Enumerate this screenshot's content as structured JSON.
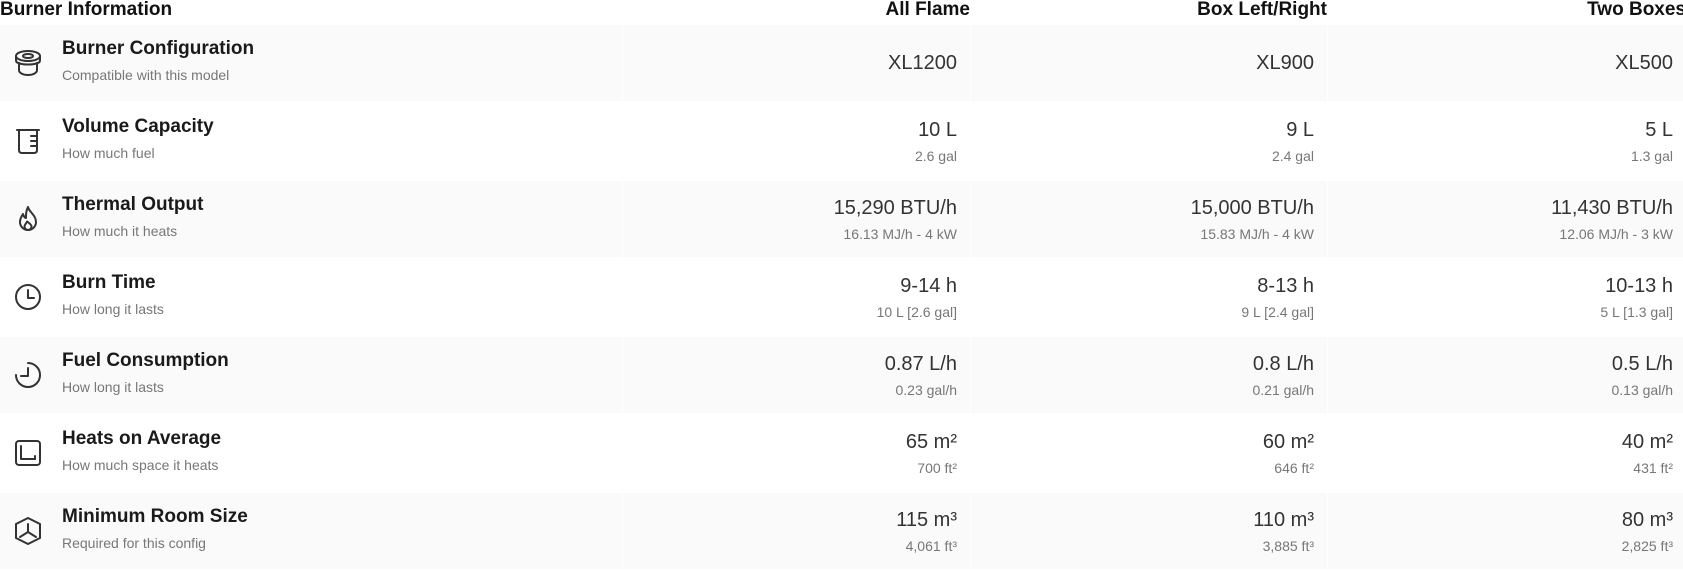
{
  "header": {
    "title": "Burner Information",
    "columns": [
      "All Flame",
      "Box Left/Right",
      "Two Boxes"
    ]
  },
  "rows": [
    {
      "icon": "burner-icon",
      "title": "Burner Configuration",
      "subtitle": "Compatible with this model",
      "values": [
        {
          "main": "XL1200",
          "sub": ""
        },
        {
          "main": "XL900",
          "sub": ""
        },
        {
          "main": "XL500",
          "sub": ""
        }
      ]
    },
    {
      "icon": "beaker-icon",
      "title": "Volume Capacity",
      "subtitle": "How much fuel",
      "values": [
        {
          "main": "10 L",
          "sub": "2.6 gal"
        },
        {
          "main": "9 L",
          "sub": "2.4 gal"
        },
        {
          "main": "5 L",
          "sub": "1.3 gal"
        }
      ]
    },
    {
      "icon": "flame-icon",
      "title": "Thermal Output",
      "subtitle": "How much it heats",
      "values": [
        {
          "main": "15,290 BTU/h",
          "sub": "16.13 MJ/h - 4 kW"
        },
        {
          "main": "15,000 BTU/h",
          "sub": "15.83 MJ/h - 4 kW"
        },
        {
          "main": "11,430 BTU/h",
          "sub": "12.06 MJ/h - 3 kW"
        }
      ]
    },
    {
      "icon": "clock-icon",
      "title": "Burn Time",
      "subtitle": "How long it lasts",
      "values": [
        {
          "main": "9-14 h",
          "sub": "10 L [2.6 gal]"
        },
        {
          "main": "8-13 h",
          "sub": "9 L [2.4 gal]"
        },
        {
          "main": "10-13 h",
          "sub": "5 L [1.3 gal]"
        }
      ]
    },
    {
      "icon": "partial-clock-icon",
      "title": "Fuel Consumption",
      "subtitle": "How long it lasts",
      "values": [
        {
          "main": "0.87 L/h",
          "sub": "0.23 gal/h"
        },
        {
          "main": "0.8 L/h",
          "sub": "0.21 gal/h"
        },
        {
          "main": "0.5 L/h",
          "sub": "0.13 gal/h"
        }
      ]
    },
    {
      "icon": "area-icon",
      "title": "Heats on Average",
      "subtitle": "How much space it heats",
      "values": [
        {
          "main": "65 m²",
          "sub": "700 ft²"
        },
        {
          "main": "60 m²",
          "sub": "646 ft²"
        },
        {
          "main": "40 m²",
          "sub": "431 ft²"
        }
      ]
    },
    {
      "icon": "cube-icon",
      "title": "Minimum Room Size",
      "subtitle": "Required for this config",
      "values": [
        {
          "main": "115 m³",
          "sub": "4,061 ft³"
        },
        {
          "main": "110 m³",
          "sub": "3,885 ft³"
        },
        {
          "main": "80 m³",
          "sub": "2,825 ft³"
        }
      ]
    }
  ]
}
